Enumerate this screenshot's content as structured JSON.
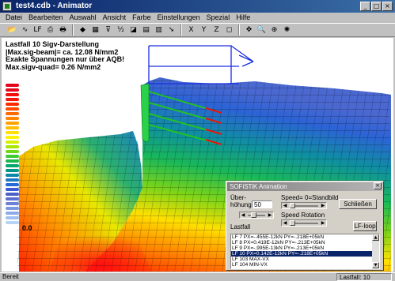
{
  "window": {
    "title": "test4.cdb - Animator",
    "controls": [
      "_",
      "□",
      "×"
    ]
  },
  "menu": [
    "Datei",
    "Bearbeiten",
    "Auswahl",
    "Ansicht",
    "Farbe",
    "Einstellungen",
    "Spezial",
    "Hilfe"
  ],
  "toolbar": {
    "groups": [
      [
        {
          "icon": "open-folder-icon",
          "glyph": "📂"
        },
        {
          "icon": "curve-icon",
          "glyph": "∿"
        },
        {
          "icon": "load-case-icon",
          "glyph": "LF"
        },
        {
          "icon": "print-preview-icon",
          "glyph": "⎙"
        },
        {
          "icon": "print-icon",
          "glyph": "🖶"
        }
      ],
      [
        {
          "icon": "red-fill-icon",
          "glyph": "◆"
        },
        {
          "icon": "grid-icon",
          "glyph": "▦"
        },
        {
          "icon": "filter-icon",
          "glyph": "⊽"
        },
        {
          "icon": "label-icon",
          "glyph": "½"
        },
        {
          "icon": "contour-icon",
          "glyph": "◪"
        },
        {
          "icon": "colormap-icon",
          "glyph": "▤"
        },
        {
          "icon": "table-icon",
          "glyph": "▥"
        },
        {
          "icon": "arrow-icon",
          "glyph": "➘"
        }
      ],
      [
        {
          "icon": "view-x-icon",
          "glyph": "X"
        },
        {
          "icon": "view-y-icon",
          "glyph": "Y"
        },
        {
          "icon": "view-z-icon",
          "glyph": "Z"
        },
        {
          "icon": "frame-icon",
          "glyph": "◻"
        }
      ],
      [
        {
          "icon": "move-icon",
          "glyph": "✥"
        },
        {
          "icon": "zoom-icon",
          "glyph": "🔍"
        },
        {
          "icon": "zoom-fit-icon",
          "glyph": "⊕"
        },
        {
          "icon": "animate-icon",
          "glyph": "✺"
        }
      ]
    ]
  },
  "canvas": {
    "info": [
      "Lastfall  10    Sigv-Darstellung",
      "|Max.sig-beam|= ca.   12.08 N/mm2",
      "Exakte Spannungen nur über AQB!",
      "Max.sigv-quad=    0.26 N/mm2"
    ],
    "legend": {
      "colors": [
        "#e8001a",
        "#e3071b",
        "#f20d0d",
        "#f5160e",
        "#ff2a00",
        "#ff4a00",
        "#ff6a00",
        "#ff8500",
        "#ffa200",
        "#ffbf00",
        "#ffe000",
        "#fff200",
        "#d8f000",
        "#a8e600",
        "#72d818",
        "#3fcc33",
        "#1ab84d",
        "#00a86a",
        "#00978a",
        "#0b88a8",
        "#1a78c4",
        "#2668d8",
        "#3a5ad8",
        "#4a5fc8",
        "#5b6fd0",
        "#6b82d8",
        "#7a97e0",
        "#8cabe8",
        "#a0c0ef",
        "#b6d4f5"
      ],
      "min_label": "0.0"
    }
  },
  "dialog": {
    "title": "SOFiSTiK Animation",
    "close": "×",
    "ueberhoehung_label": "Über-\nhöhung",
    "ueberhoehung_value": "50",
    "speed_label": "Speed= 0=Standbild",
    "speed_rotation_label": "Speed Rotation",
    "lastfall_label": "Lastfall",
    "close_button": "Schließen",
    "loop_button": "LF-loop",
    "list": [
      "LF   7 PX=-.455E-12kN  PY=-.218E+05kN",
      "LF   8 PX=0.419E-12kN  PY=-.213E+05kN",
      "LF   9 PX=-.995E-13kN  PY=-.213E+05kN",
      "LF  10 PX=0.142E-12kN  PY=-.218E+05kN",
      "LF 103 MAX-VX",
      "LF 104 MIN-VX"
    ],
    "selected_index": 3
  },
  "status": {
    "left": "Bereit",
    "right": "Lastfall: 10"
  }
}
